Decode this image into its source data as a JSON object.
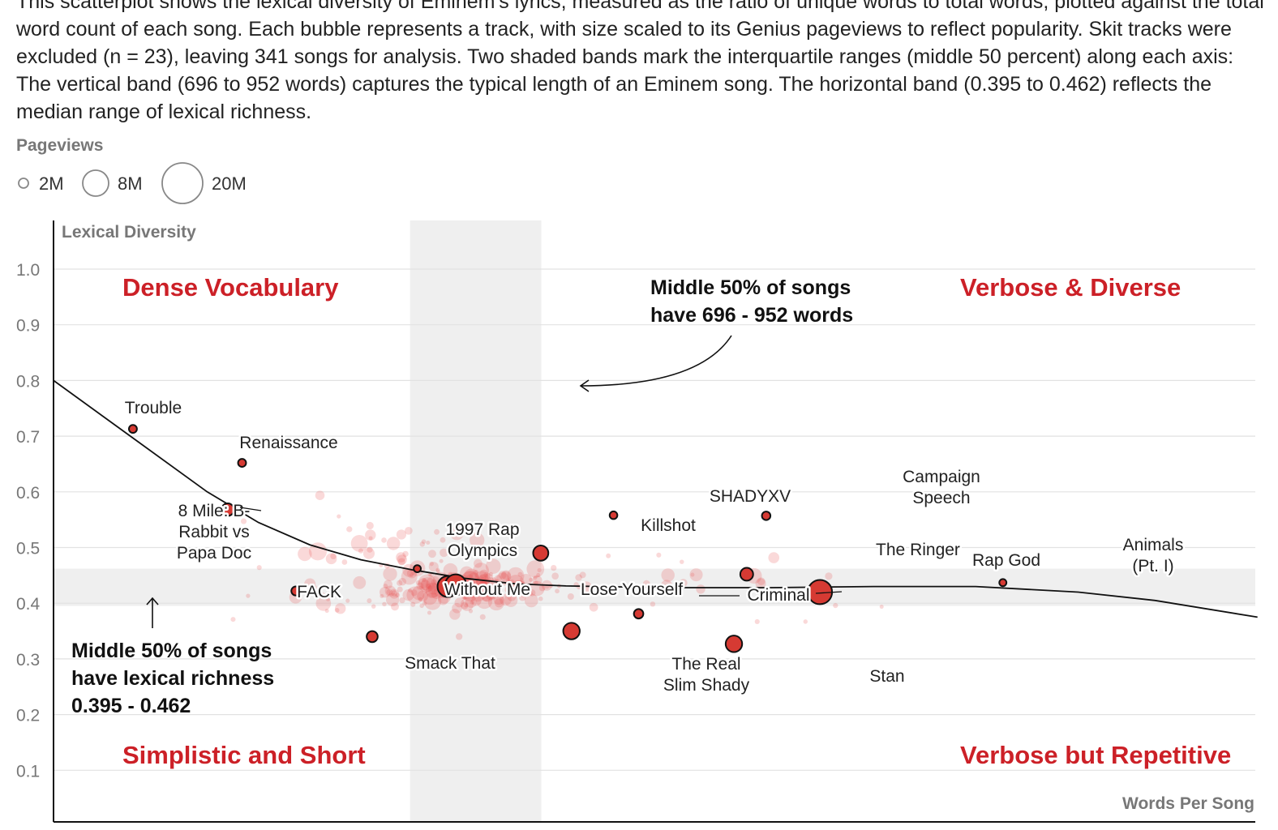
{
  "intro": "This scatterplot shows the lexical diversity of Eminem's lyrics, measured as the ratio of unique words to total words, plotted against the total word count of each song. Each bubble represents a track, with size scaled to its Genius pageviews to reflect popularity. Skit tracks were excluded (n = 23), leaving 341 songs for analysis. Two shaded bands mark the interquartile ranges (middle 50 percent) along each axis: The vertical band (696 to 952 words) captures the typical length of an Eminem song. The horizontal band (0.395 to 0.462) reflects the median range of lexical richness.",
  "legend": {
    "title": "Pageviews",
    "items": [
      {
        "label": "2M",
        "value": 2
      },
      {
        "label": "8M",
        "value": 8
      },
      {
        "label": "20M",
        "value": 20
      }
    ]
  },
  "colors": {
    "accent": "#cc2027",
    "dot": "#d63a33",
    "band": "#efefef"
  },
  "chart_data": {
    "type": "scatter",
    "ylabel": "Lexical Diversity",
    "xlabel": "Words Per Song",
    "ylim": [
      0,
      1.05
    ],
    "yticks": [
      "0.1",
      "0.2",
      "0.3",
      "0.4",
      "0.5",
      "0.6",
      "0.7",
      "0.8",
      "0.9",
      "1.0"
    ],
    "xlim": [
      0,
      2350
    ],
    "iqr_x": [
      696,
      952
    ],
    "iqr_y": [
      0.395,
      0.462
    ],
    "quadrants": {
      "top_left": "Dense Vocabulary",
      "top_right": "Verbose & Diverse",
      "bottom_left": "Simplistic and Short",
      "bottom_right": "Verbose but Repetitive"
    },
    "annotations": {
      "x_band": [
        "Middle 50% of songs",
        "have 696 - 952 words"
      ],
      "y_band": [
        "Middle 50% of songs",
        "have lexical richness",
        "0.395 - 0.462"
      ]
    },
    "trend": [
      [
        0,
        0.8
      ],
      [
        150,
        0.7
      ],
      [
        300,
        0.6
      ],
      [
        400,
        0.545
      ],
      [
        500,
        0.505
      ],
      [
        600,
        0.478
      ],
      [
        700,
        0.46
      ],
      [
        800,
        0.445
      ],
      [
        900,
        0.435
      ],
      [
        1000,
        0.431
      ],
      [
        1200,
        0.428
      ],
      [
        1400,
        0.428
      ],
      [
        1600,
        0.43
      ],
      [
        1800,
        0.43
      ],
      [
        2000,
        0.42
      ],
      [
        2150,
        0.405
      ],
      [
        2350,
        0.375
      ]
    ],
    "highlighted": [
      {
        "name": "Trouble",
        "words": 155,
        "ld": 0.713,
        "views": 1.2
      },
      {
        "name": "Renaissance",
        "words": 368,
        "ld": 0.652,
        "views": 1.2
      },
      {
        "name": "8 Mile: B-Rabbit vs Papa Doc",
        "words": 340,
        "ld": 0.568,
        "views": 3.5
      },
      {
        "name": "FACK",
        "words": 473,
        "ld": 0.422,
        "views": 1.6
      },
      {
        "name": "Smack That",
        "words": 622,
        "ld": 0.34,
        "views": 2.6
      },
      {
        "name": "1997 Rap Olympics",
        "words": 710,
        "ld": 0.462,
        "views": 0.9
      },
      {
        "name": "Without Me",
        "words": 770,
        "ld": 0.43,
        "views": 11
      },
      {
        "name": "Lose Yourself",
        "words": 785,
        "ld": 0.433,
        "views": 11
      },
      {
        "name": "Killshot",
        "words": 951,
        "ld": 0.49,
        "views": 5.4
      },
      {
        "name": "The Real Slim Shady",
        "words": 1011,
        "ld": 0.35,
        "views": 6.5
      },
      {
        "name": "SHADYXV",
        "words": 1093,
        "ld": 0.558,
        "views": 1.1
      },
      {
        "name": "Criminal",
        "words": 1142,
        "ld": 0.381,
        "views": 1.8
      },
      {
        "name": "Stan",
        "words": 1328,
        "ld": 0.327,
        "views": 6.5
      },
      {
        "name": "Campaign Speech",
        "words": 1391,
        "ld": 0.557,
        "views": 1.4
      },
      {
        "name": "The Ringer",
        "words": 1353,
        "ld": 0.452,
        "views": 3.7
      },
      {
        "name": "Rap God",
        "words": 1496,
        "ld": 0.42,
        "views": 15
      },
      {
        "name": "Animals (Pt. I)",
        "words": 1853,
        "ld": 0.437,
        "views": 0.9
      }
    ]
  }
}
